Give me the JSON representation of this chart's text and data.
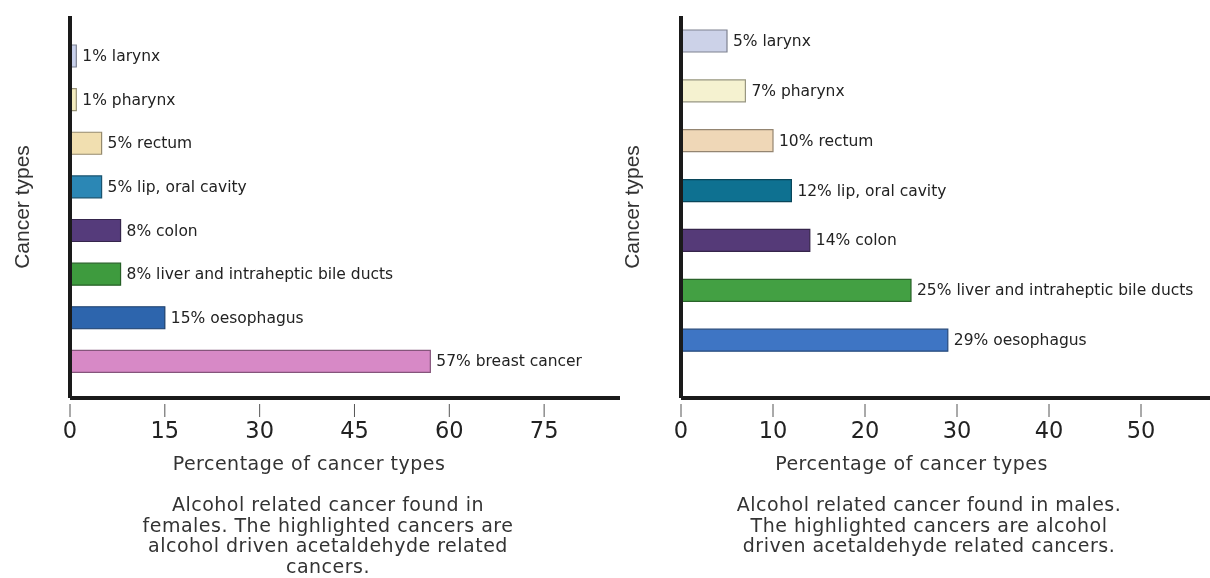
{
  "chart_data": [
    {
      "type": "bar",
      "orientation": "horizontal",
      "categories": [
        null,
        null,
        null,
        null,
        null,
        null,
        null,
        null
      ],
      "values": [
        1,
        1,
        5,
        5,
        8,
        8,
        15,
        57
      ],
      "colors": [
        "#c9d1ec",
        "#f4ecbf",
        "#f1dfb0",
        "#2b87b5",
        "#553b7b",
        "#3e9b3e",
        "#2d65ad",
        "#d789c6"
      ],
      "value_labels": [
        "1% larynx",
        "1% pharynx",
        "5% rectum",
        "5% lip, oral cavity",
        "8% colon",
        "8% liver and intraheptic bile ducts",
        "15% oesophagus",
        "57% breast cancer"
      ],
      "xlabel": "Percentage of cancer types",
      "ylabel": "Cancer types",
      "xlim": [
        0,
        87
      ],
      "xticks": [
        0,
        15,
        30,
        45,
        60,
        75
      ],
      "tick_labels": "x",
      "annotations": [
        "Alcohol related cancer found in females. The highlighted cancers are alcohol driven acetaldehyde related cancers."
      ]
    },
    {
      "type": "bar",
      "orientation": "horizontal",
      "categories": [
        null,
        null,
        null,
        null,
        null,
        null,
        null
      ],
      "values": [
        5,
        7,
        10,
        12,
        14,
        25,
        29
      ],
      "colors": [
        "#ccd2e8",
        "#f5f2d0",
        "#efd7b7",
        "#0e7191",
        "#553a78",
        "#43a043",
        "#3e75c4"
      ],
      "value_labels": [
        "5% larynx",
        "7% pharynx",
        "10% rectum",
        "12% lip, oral cavity",
        "14% colon",
        "25% liver and intraheptic bile ducts",
        "29% oesophagus"
      ],
      "xlabel": "Percentage of cancer types",
      "ylabel": "Cancer types",
      "xlim": [
        0,
        57.5
      ],
      "xticks": [
        0,
        10,
        20,
        30,
        40,
        50
      ],
      "tick_labels": "x",
      "annotations": [
        "Alcohol related cancer found in males. The highlighted cancers are alcohol driven acetaldehyde related cancers."
      ]
    }
  ]
}
